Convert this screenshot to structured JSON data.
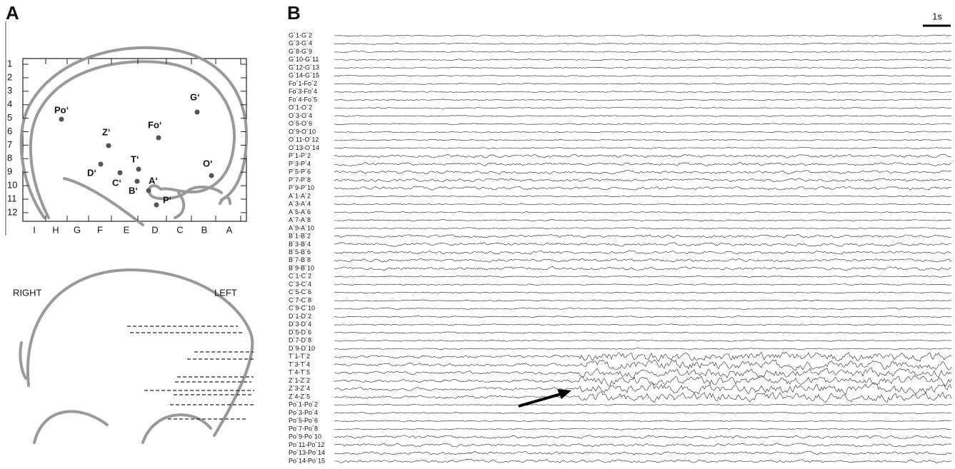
{
  "panel_a": {
    "label": "A",
    "rows": [
      "1",
      "2",
      "3",
      "4",
      "5",
      "6",
      "7",
      "8",
      "9",
      "10",
      "11",
      "12"
    ],
    "columns": [
      "I",
      "H",
      "G",
      "F",
      "E",
      "D",
      "C",
      "B",
      "A"
    ],
    "electrodes": [
      "Po‘",
      "G‘",
      "Fo‘",
      "Z‘",
      "T‘",
      "O‘",
      "D‘",
      "C‘",
      "B‘",
      "A‘",
      "P‘"
    ],
    "coronal": {
      "right": "RIGHT",
      "left": "LEFT"
    }
  },
  "panel_b": {
    "label": "B",
    "scale_bar": "1s",
    "channels": [
      "G´1-G´2",
      "G´3-G´4",
      "G´8-G´9",
      "G´10-G´11",
      "G´12-G´13",
      "G´14-G´15",
      "Fo´1-Fo´2",
      "Fo´3-Fo´4",
      "Fo´4-Fo´5",
      "O´1-O´2",
      "O´3-O´4",
      "O´5-O´6",
      "O´9-O´10",
      "O´11-O´12",
      "O´13-O´14",
      "P´1-P´2",
      "P´3-P´4",
      "P´5-P´6",
      "P´7-P´8",
      "P´9-P´10",
      "A´1-A´2",
      "A´3-A´4",
      "A´5-A´6",
      "A´7-A´8",
      "A´9-A´10",
      "B´1-B´2",
      "B´3-B´4",
      "B´5-B´6",
      "B´7-B´8",
      "B´9-B´10",
      "C´1-C´2",
      "C´3-C´4",
      "C´5-C´6",
      "C´7-C´8",
      "C´9-C´10",
      "D´1-D´2",
      "D´3-D´4",
      "D´5-D´6",
      "D´7-D´8",
      "D´9-D´10",
      "T´1-T´2",
      "T´3-T´4",
      "T´4-T´5",
      "Z´1-Z´2",
      "Z´3-Z´4",
      "Z´4-Z´5",
      "Po´1-Po´2",
      "Po´3-Po´4",
      "Po´5-Po´6",
      "Po´7-Po´8",
      "Po´9-Po´10",
      "Po´11-Po´12",
      "Po´13-Po´14",
      "Po´14-Po´15"
    ]
  }
}
